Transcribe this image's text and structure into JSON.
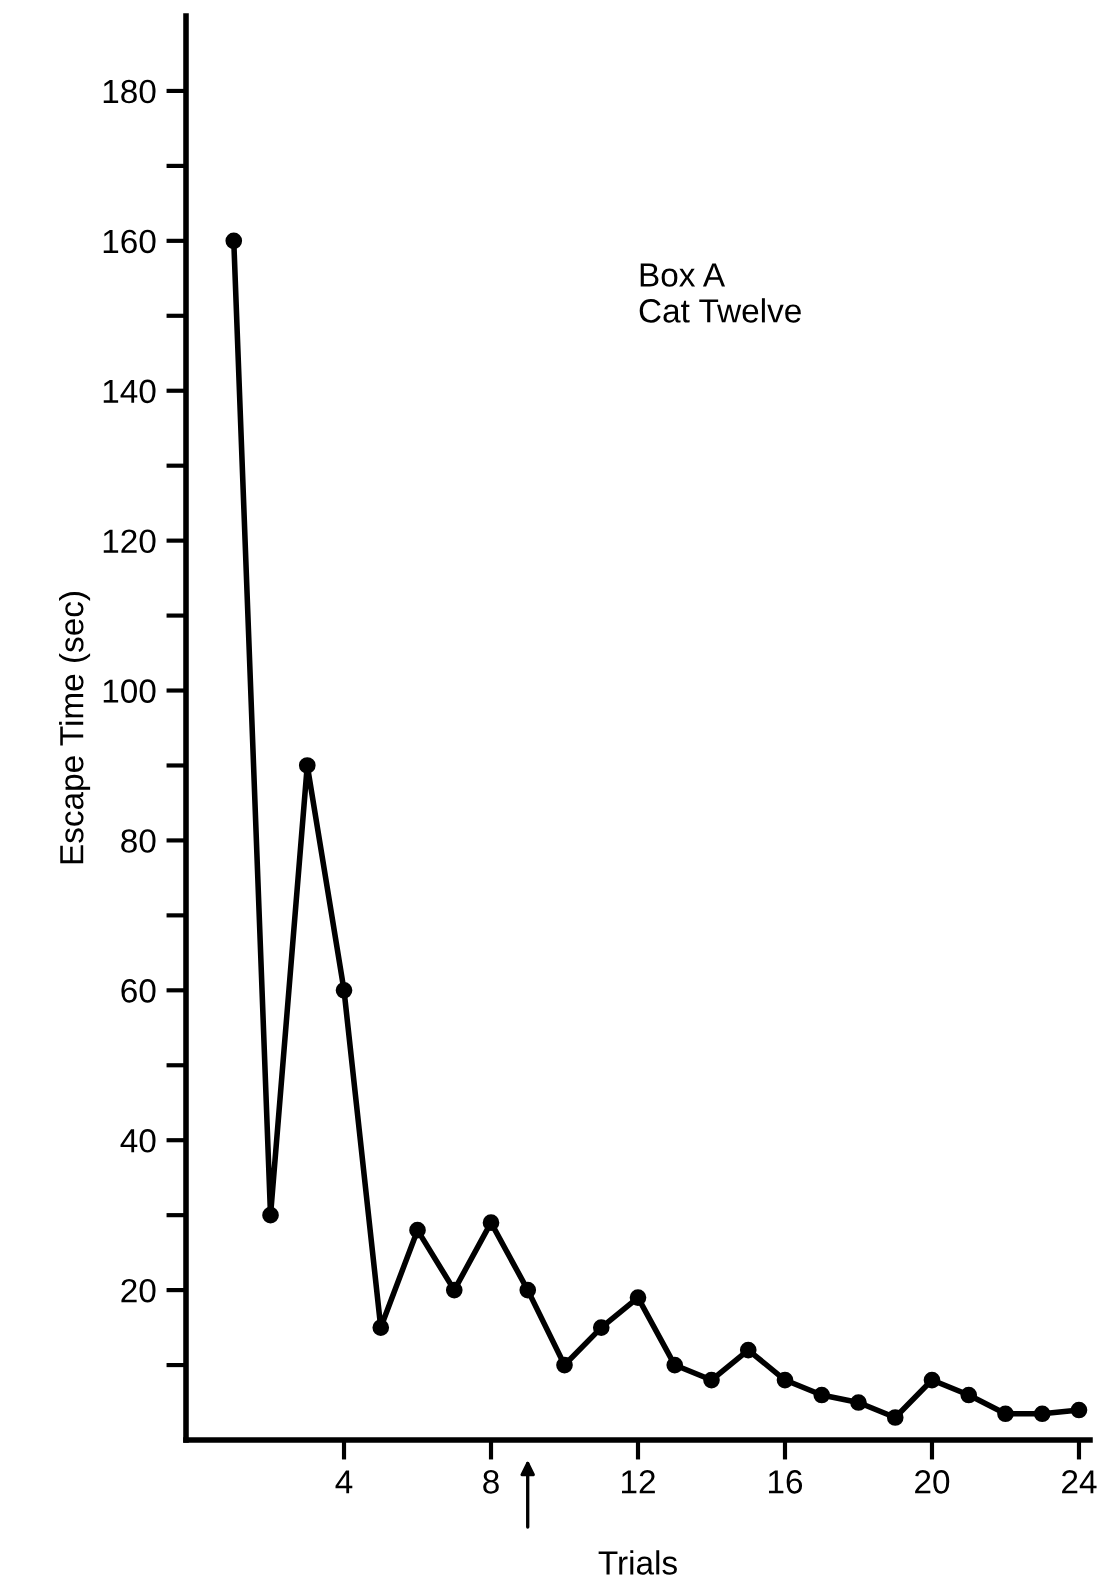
{
  "chart_data": {
    "type": "line",
    "xlabel": "Trials",
    "ylabel": "Escape Time (sec)",
    "x": [
      1,
      2,
      3,
      4,
      5,
      6,
      7,
      8,
      9,
      10,
      11,
      12,
      13,
      14,
      15,
      16,
      17,
      18,
      19,
      20,
      21,
      22,
      23,
      24
    ],
    "series": [
      {
        "color": "#000000",
        "values": [
          160,
          30,
          90,
          60,
          15,
          28,
          20,
          29,
          20,
          10,
          15,
          19,
          10,
          8,
          12,
          8,
          6,
          5,
          3,
          8,
          6,
          3.5,
          3.5,
          4
        ]
      }
    ],
    "xlim": [
      -0.3,
      24.3
    ],
    "xticks": [
      4,
      8,
      12,
      16,
      20,
      24
    ],
    "ylim": [
      0,
      190
    ],
    "yticks": [
      {
        "value": 10,
        "label": null
      },
      20,
      {
        "value": 30,
        "label": null
      },
      40,
      {
        "value": 50,
        "label": null
      },
      60,
      {
        "value": 70,
        "label": null
      },
      80,
      {
        "value": 90,
        "label": null
      },
      100,
      {
        "value": 110,
        "label": null
      },
      120,
      {
        "value": 130,
        "label": null
      },
      140,
      {
        "value": 150,
        "label": null
      },
      160,
      {
        "value": 170,
        "label": null
      },
      180
    ],
    "annotations": [
      "Box A\nCat Twelve"
    ],
    "marker": "circle",
    "line_style": "solid",
    "grid": false,
    "legend": false
  }
}
